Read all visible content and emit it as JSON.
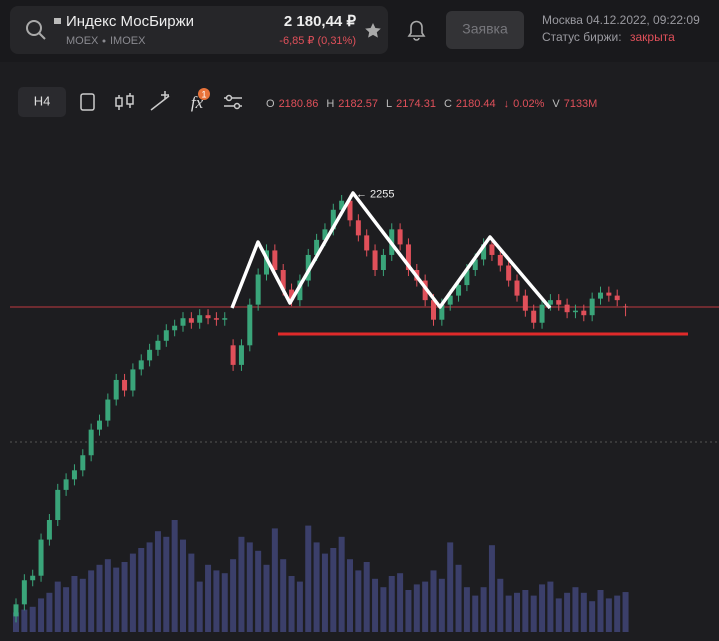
{
  "header": {
    "title": "Индекс МосБиржи",
    "exchange": "MOEX",
    "ticker": "IMOEX",
    "price": "2 180,44 ₽",
    "change": "-6,85 ₽ (0,31%)",
    "order_button": "Заявка",
    "datetime": "Москва 04.12.2022, 09:22:09",
    "status_label": "Статус биржи:",
    "status": "закрыта"
  },
  "toolbar": {
    "interval": "H4",
    "fx": "fx",
    "badge": "1"
  },
  "ohlc_bar": {
    "o": "O",
    "h": "H",
    "l": "L",
    "c": "C",
    "arrow": "↓",
    "change": "0.02%",
    "v": "V",
    "volume": "7133M"
  },
  "chart_data": {
    "type": "candlestick",
    "high_arrow": "←",
    "up_color": "#3aa57a",
    "down_color": "#e0505a",
    "volume_color": "#3b3f6a",
    "candles": [
      [
        1975,
        1987,
        1971,
        1983
      ],
      [
        1983,
        2003,
        1979,
        1999
      ],
      [
        1999,
        2006,
        1995,
        2002
      ],
      [
        2002,
        2030,
        1998,
        2026
      ],
      [
        2026,
        2043,
        2022,
        2039
      ],
      [
        2039,
        2063,
        2035,
        2059
      ],
      [
        2059,
        2070,
        2055,
        2066
      ],
      [
        2066,
        2076,
        2062,
        2072
      ],
      [
        2072,
        2086,
        2068,
        2082
      ],
      [
        2082,
        2103,
        2078,
        2099
      ],
      [
        2099,
        2109,
        2095,
        2105
      ],
      [
        2105,
        2123,
        2101,
        2119
      ],
      [
        2119,
        2136,
        2115,
        2132
      ],
      [
        2132,
        2136,
        2121,
        2125
      ],
      [
        2125,
        2143,
        2121,
        2139
      ],
      [
        2139,
        2149,
        2135,
        2145
      ],
      [
        2145,
        2156,
        2141,
        2152
      ],
      [
        2152,
        2162,
        2148,
        2158
      ],
      [
        2158,
        2169,
        2154,
        2165
      ],
      [
        2165,
        2172,
        2161,
        2168
      ],
      [
        2168,
        2177,
        2164,
        2173
      ],
      [
        2173,
        2177,
        2166,
        2170
      ],
      [
        2170,
        2179,
        2166,
        2175
      ],
      [
        2175,
        2179,
        2169,
        2173
      ],
      [
        2173,
        2177,
        2168,
        2172
      ],
      [
        2172,
        2177,
        2168,
        2173
      ],
      [
        2155,
        2159,
        2138,
        2142
      ],
      [
        2142,
        2159,
        2138,
        2155
      ],
      [
        2155,
        2186,
        2151,
        2182
      ],
      [
        2182,
        2206,
        2178,
        2202
      ],
      [
        2202,
        2222,
        2198,
        2218
      ],
      [
        2218,
        2222,
        2201,
        2205
      ],
      [
        2205,
        2209,
        2188,
        2192
      ],
      [
        2192,
        2196,
        2181,
        2185
      ],
      [
        2185,
        2202,
        2181,
        2198
      ],
      [
        2198,
        2219,
        2194,
        2215
      ],
      [
        2215,
        2229,
        2211,
        2225
      ],
      [
        2225,
        2236,
        2221,
        2232
      ],
      [
        2232,
        2249,
        2228,
        2245
      ],
      [
        2245,
        2254.81,
        2241,
        2251
      ],
      [
        2251,
        2255,
        2234,
        2238
      ],
      [
        2238,
        2242,
        2224,
        2228
      ],
      [
        2228,
        2232,
        2214,
        2218
      ],
      [
        2218,
        2222,
        2201,
        2205
      ],
      [
        2205,
        2219,
        2201,
        2215
      ],
      [
        2215,
        2236,
        2211,
        2232
      ],
      [
        2232,
        2236,
        2218,
        2222
      ],
      [
        2222,
        2226,
        2201,
        2205
      ],
      [
        2205,
        2209,
        2194,
        2198
      ],
      [
        2198,
        2202,
        2181,
        2185
      ],
      [
        2185,
        2189,
        2168,
        2172
      ],
      [
        2172,
        2186,
        2168,
        2182
      ],
      [
        2182,
        2192,
        2178,
        2188
      ],
      [
        2188,
        2199,
        2184,
        2195
      ],
      [
        2195,
        2209,
        2191,
        2205
      ],
      [
        2205,
        2216,
        2201,
        2212
      ],
      [
        2212,
        2226,
        2208,
        2222
      ],
      [
        2222,
        2226,
        2211,
        2215
      ],
      [
        2215,
        2219,
        2204,
        2208
      ],
      [
        2208,
        2212,
        2194,
        2198
      ],
      [
        2198,
        2202,
        2184,
        2188
      ],
      [
        2188,
        2192,
        2174,
        2178
      ],
      [
        2178,
        2182,
        2166,
        2170
      ],
      [
        2170,
        2186,
        2166,
        2182
      ],
      [
        2182,
        2189,
        2178,
        2185
      ],
      [
        2185,
        2189,
        2178,
        2182
      ],
      [
        2182,
        2186,
        2173,
        2177
      ],
      [
        2177,
        2182,
        2173,
        2178
      ],
      [
        2178,
        2182,
        2171,
        2175
      ],
      [
        2175,
        2190,
        2171,
        2186
      ],
      [
        2186,
        2194,
        2182,
        2190
      ],
      [
        2190,
        2194,
        2184,
        2188
      ],
      [
        2188,
        2192,
        2181,
        2185
      ],
      [
        2180.86,
        2182.57,
        2174.31,
        2180.44
      ]
    ],
    "volumes": [
      3500,
      4000,
      4500,
      6000,
      7000,
      9000,
      8000,
      10000,
      9500,
      11000,
      12000,
      13000,
      11500,
      12500,
      14000,
      15000,
      16000,
      18000,
      17000,
      20000,
      16500,
      14000,
      9000,
      12000,
      11000,
      10500,
      13000,
      17000,
      16000,
      14500,
      12000,
      18500,
      13000,
      10000,
      9000,
      19000,
      16000,
      14000,
      15000,
      17000,
      13000,
      11000,
      12500,
      9500,
      8000,
      10000,
      10500,
      7500,
      8500,
      9000,
      11000,
      9500,
      16000,
      12000,
      8000,
      6500,
      8000,
      15500,
      9500,
      6500,
      7000,
      7500,
      6500,
      8500,
      9000,
      6000,
      7000,
      8000,
      7000,
      5500,
      7500,
      6000,
      6500,
      7133
    ]
  }
}
